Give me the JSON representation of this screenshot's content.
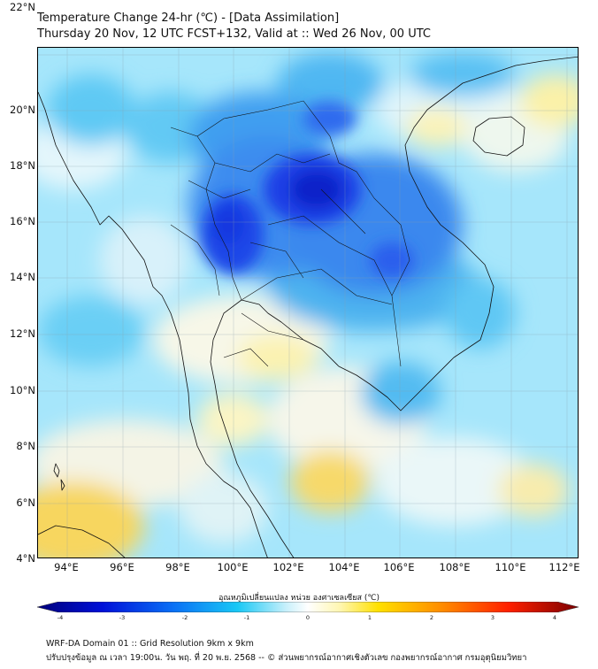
{
  "title": {
    "line1": "Temperature Change 24-hr (℃) - [Data Assimilation]",
    "line2": "Thursday 20 Nov, 12 UTC FCST+132, Valid at :: Wed 26 Nov, 00 UTC"
  },
  "axes": {
    "lat_labels": [
      "22°N",
      "20°N",
      "18°N",
      "16°N",
      "14°N",
      "12°N",
      "10°N",
      "8°N",
      "6°N",
      "4°N"
    ],
    "lon_labels": [
      "94°E",
      "96°E",
      "98°E",
      "100°E",
      "102°E",
      "104°E",
      "106°E",
      "108°E",
      "110°E",
      "112°E"
    ]
  },
  "colorbar": {
    "title": "อุณหภูมิเปลี่ยนแปลง หน่วย องศาเซลเซียส (℃)",
    "ticks": [
      "-4",
      "-3",
      "-2",
      "-1",
      "0",
      "1",
      "2",
      "3",
      "4"
    ],
    "min": -4,
    "max": 4,
    "colors": [
      "#00007a",
      "#0033ff",
      "#19c8f5",
      "#ffffff",
      "#ffe000",
      "#ff3000",
      "#7a0000"
    ]
  },
  "footer": {
    "line1": "WRF-DA Domain 01 :: Grid Resolution 9km x 9km",
    "line2": "ปรับปรุงข้อมูล ณ เวลา 19:00น. วัน พฤ. ที่ 20 พ.ย. 2568 -- © ส่วนพยากรณ์อากาศเชิงตัวเลข กองพยากรณ์อากาศ กรมอุตุนิยมวิทยา"
  }
}
